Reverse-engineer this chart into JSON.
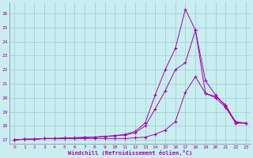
{
  "xlabel": "Windchill (Refroidissement éolien,°C)",
  "bg_color": "#c8eef0",
  "grid_color": "#a0ccd0",
  "line_color": "#aa00aa",
  "xlim": [
    -0.5,
    23.5
  ],
  "ylim": [
    16.7,
    26.8
  ],
  "yticks": [
    17,
    18,
    19,
    20,
    21,
    22,
    23,
    24,
    25,
    26
  ],
  "xticks": [
    0,
    1,
    2,
    3,
    4,
    5,
    6,
    7,
    8,
    9,
    10,
    11,
    12,
    13,
    14,
    15,
    16,
    17,
    18,
    19,
    20,
    21,
    22,
    23
  ],
  "series1_x": [
    0,
    1,
    2,
    3,
    4,
    5,
    6,
    7,
    8,
    9,
    10,
    11,
    12,
    13,
    14,
    15,
    16,
    17,
    18,
    19,
    20,
    21,
    22,
    23
  ],
  "series1_y": [
    17.0,
    17.05,
    17.05,
    17.1,
    17.1,
    17.1,
    17.1,
    17.1,
    17.1,
    17.1,
    17.1,
    17.1,
    17.15,
    17.2,
    17.4,
    17.7,
    18.3,
    20.4,
    21.5,
    20.3,
    20.1,
    19.5,
    18.2,
    18.2
  ],
  "series2_x": [
    0,
    1,
    2,
    3,
    4,
    5,
    6,
    7,
    8,
    9,
    10,
    11,
    12,
    13,
    14,
    15,
    16,
    17,
    18,
    19,
    20,
    21,
    22,
    23
  ],
  "series2_y": [
    17.0,
    17.05,
    17.05,
    17.1,
    17.1,
    17.1,
    17.15,
    17.15,
    17.2,
    17.25,
    17.3,
    17.35,
    17.5,
    18.0,
    19.2,
    20.5,
    22.0,
    22.5,
    24.8,
    21.2,
    20.2,
    19.4,
    18.3,
    18.2
  ],
  "series3_x": [
    0,
    1,
    2,
    3,
    4,
    5,
    6,
    7,
    8,
    9,
    10,
    11,
    12,
    13,
    14,
    15,
    16,
    17,
    18,
    19,
    20,
    21,
    22,
    23
  ],
  "series3_y": [
    17.0,
    17.05,
    17.05,
    17.1,
    17.1,
    17.15,
    17.15,
    17.2,
    17.2,
    17.25,
    17.3,
    17.4,
    17.6,
    18.2,
    20.2,
    22.0,
    23.5,
    26.3,
    24.8,
    20.3,
    20.0,
    19.3,
    18.2,
    18.2
  ]
}
